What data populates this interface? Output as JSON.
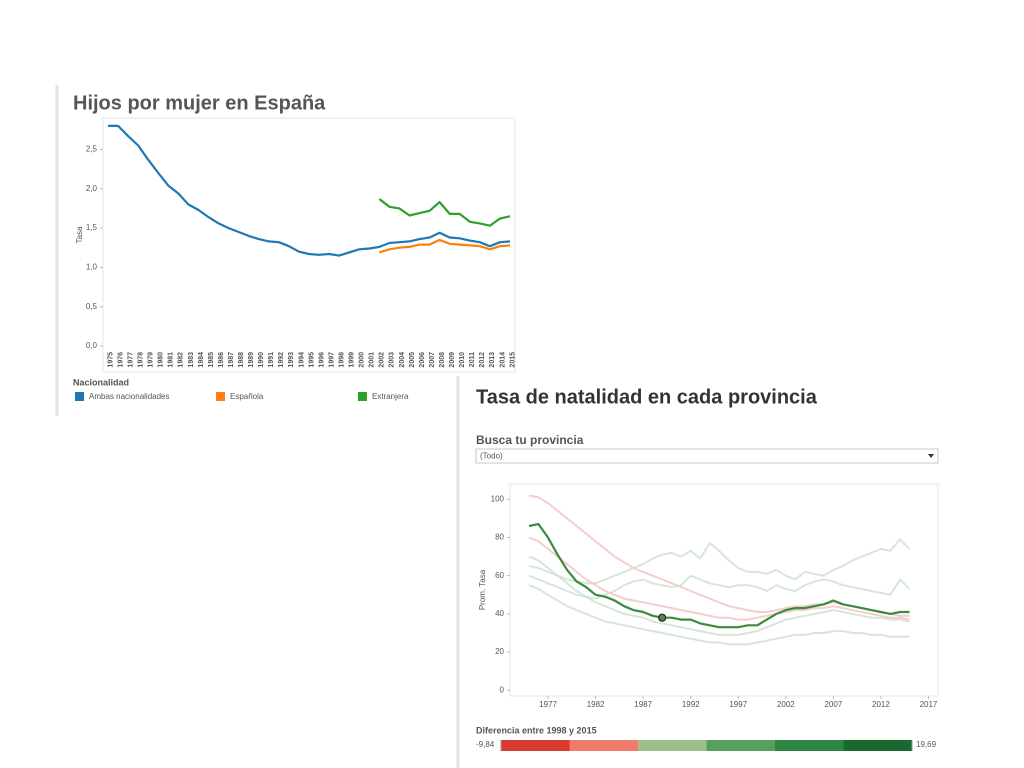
{
  "chart_data": [
    {
      "type": "line",
      "title": "Hijos por mujer en España",
      "y_label": "Tasa",
      "legend_title": "Nacionalidad",
      "categories": [
        "1975",
        "1976",
        "1977",
        "1978",
        "1979",
        "1980",
        "1981",
        "1982",
        "1983",
        "1984",
        "1985",
        "1986",
        "1987",
        "1988",
        "1989",
        "1990",
        "1991",
        "1992",
        "1993",
        "1994",
        "1995",
        "1996",
        "1997",
        "1998",
        "1999",
        "2000",
        "2001",
        "2002",
        "2003",
        "2004",
        "2005",
        "2006",
        "2007",
        "2008",
        "2009",
        "2010",
        "2011",
        "2012",
        "2013",
        "2014",
        "2015"
      ],
      "ylim": [
        0,
        2.9
      ],
      "yticks": [
        {
          "value": 0,
          "label": "0,0"
        },
        {
          "value": 0.5,
          "label": "0,5"
        },
        {
          "value": 1,
          "label": "1,0"
        },
        {
          "value": 1.5,
          "label": "1,5"
        },
        {
          "value": 2,
          "label": "2,0"
        },
        {
          "value": 2.5,
          "label": "2,5"
        }
      ],
      "series": [
        {
          "name": "Ambas nacionalidades",
          "color": "#1f77b4",
          "values": [
            2.8,
            2.8,
            2.67,
            2.55,
            2.37,
            2.2,
            2.04,
            1.94,
            1.8,
            1.73,
            1.64,
            1.56,
            1.5,
            1.45,
            1.4,
            1.36,
            1.33,
            1.32,
            1.27,
            1.2,
            1.17,
            1.16,
            1.17,
            1.15,
            1.19,
            1.23,
            1.24,
            1.26,
            1.31,
            1.32,
            1.33,
            1.36,
            1.38,
            1.44,
            1.38,
            1.37,
            1.34,
            1.32,
            1.27,
            1.32,
            1.33
          ]
        },
        {
          "name": "Española",
          "color": "#ff7f0e",
          "values": [
            null,
            null,
            null,
            null,
            null,
            null,
            null,
            null,
            null,
            null,
            null,
            null,
            null,
            null,
            null,
            null,
            null,
            null,
            null,
            null,
            null,
            null,
            null,
            null,
            null,
            null,
            null,
            1.19,
            1.23,
            1.25,
            1.26,
            1.29,
            1.29,
            1.35,
            1.3,
            1.29,
            1.28,
            1.27,
            1.23,
            1.27,
            1.28
          ]
        },
        {
          "name": "Extranjera",
          "color": "#2ca02c",
          "values": [
            null,
            null,
            null,
            null,
            null,
            null,
            null,
            null,
            null,
            null,
            null,
            null,
            null,
            null,
            null,
            null,
            null,
            null,
            null,
            null,
            null,
            null,
            null,
            null,
            null,
            null,
            null,
            1.87,
            1.77,
            1.75,
            1.66,
            1.69,
            1.72,
            1.83,
            1.68,
            1.68,
            1.58,
            1.56,
            1.53,
            1.62,
            1.65
          ]
        }
      ]
    },
    {
      "type": "line",
      "title": "Tasa de natalidad en cada provincia",
      "filter_label": "Busca tu provincia",
      "filter_value": "(Todo)",
      "y_label": "Prom. Tasa",
      "x": [
        1975,
        1976,
        1977,
        1978,
        1979,
        1980,
        1981,
        1982,
        1983,
        1984,
        1985,
        1986,
        1987,
        1988,
        1989,
        1990,
        1991,
        1992,
        1993,
        1994,
        1995,
        1996,
        1997,
        1998,
        1999,
        2000,
        2001,
        2002,
        2003,
        2004,
        2005,
        2006,
        2007,
        2008,
        2009,
        2010,
        2011,
        2012,
        2013,
        2014,
        2015
      ],
      "xlim": [
        1973,
        2018
      ],
      "xticks": [
        1977,
        1982,
        1987,
        1992,
        1997,
        2002,
        2007,
        2012,
        2017
      ],
      "ylim": [
        -3,
        108
      ],
      "yticks": [
        0,
        20,
        40,
        60,
        80,
        100
      ],
      "series": [
        {
          "color": "#f4c4c4",
          "values": [
            102,
            101,
            98,
            94,
            90,
            86,
            82,
            78,
            74,
            70,
            67,
            64,
            62,
            60,
            58,
            56,
            54,
            52,
            50,
            48,
            46,
            44,
            43,
            42,
            41,
            41,
            42,
            43,
            44,
            44,
            45,
            45,
            46,
            45,
            44,
            43,
            42,
            41,
            40,
            39,
            39
          ]
        },
        {
          "color": "#cfe2d2",
          "values": [
            65,
            64,
            62,
            60,
            58,
            57,
            56,
            56,
            58,
            60,
            62,
            64,
            66,
            69,
            71,
            72,
            70,
            73,
            69,
            77,
            73,
            68,
            64,
            62,
            62,
            61,
            63,
            60,
            58,
            62,
            61,
            60,
            63,
            65,
            68,
            70,
            72,
            74,
            73,
            79,
            74
          ]
        },
        {
          "color": "#cfe2d2",
          "values": [
            60,
            58,
            56,
            54,
            52,
            50,
            49,
            48,
            50,
            52,
            55,
            57,
            58,
            56,
            55,
            54,
            55,
            60,
            58,
            56,
            55,
            54,
            55,
            55,
            54,
            52,
            55,
            53,
            52,
            55,
            57,
            58,
            57,
            55,
            54,
            53,
            52,
            51,
            50,
            58,
            53
          ]
        },
        {
          "color": "#f4c4c4",
          "values": [
            80,
            78,
            74,
            70,
            66,
            62,
            58,
            55,
            52,
            50,
            48,
            47,
            46,
            45,
            44,
            43,
            42,
            41,
            40,
            39,
            38,
            38,
            37,
            37,
            38,
            39,
            40,
            41,
            42,
            42,
            43,
            43,
            44,
            43,
            42,
            41,
            40,
            39,
            38,
            38,
            37
          ]
        },
        {
          "color": "#cfe2d2",
          "values": [
            55,
            53,
            50,
            47,
            44,
            42,
            40,
            38,
            36,
            35,
            34,
            33,
            32,
            31,
            30,
            29,
            28,
            27,
            26,
            25,
            25,
            24,
            24,
            24,
            25,
            26,
            27,
            28,
            29,
            29,
            30,
            30,
            31,
            31,
            30,
            30,
            29,
            29,
            28,
            28,
            28
          ]
        },
        {
          "color": "#cfe2d2",
          "values": [
            70,
            68,
            64,
            60,
            56,
            52,
            49,
            46,
            44,
            42,
            40,
            39,
            38,
            36,
            35,
            34,
            33,
            32,
            31,
            30,
            29,
            29,
            29,
            30,
            31,
            33,
            35,
            37,
            38,
            39,
            40,
            41,
            42,
            41,
            40,
            39,
            38,
            38,
            37,
            37,
            36
          ]
        }
      ],
      "highlight": {
        "color": "#3a8a3f",
        "values": [
          86,
          87,
          80,
          71,
          63,
          57,
          54,
          50,
          49,
          47,
          44,
          42,
          41,
          39,
          38,
          38,
          37,
          37,
          35,
          34,
          33,
          33,
          33,
          34,
          34,
          37,
          40,
          42,
          43,
          43,
          44,
          45,
          47,
          45,
          44,
          43,
          42,
          41,
          40,
          41,
          41
        ]
      },
      "marker": {
        "x": 1989,
        "y": 38,
        "color": "#4f8a4a"
      },
      "color_legend": {
        "title": "Diferencia entre 1998 y 2015",
        "min": {
          "value": -9.84,
          "label": "-9,84"
        },
        "max": {
          "value": 19.69,
          "label": "19,69"
        },
        "colors": [
          "#d73a2f",
          "#ee7b6b",
          "#9cbf8b",
          "#55a05a",
          "#2e8644",
          "#1a6a30"
        ]
      }
    }
  ]
}
